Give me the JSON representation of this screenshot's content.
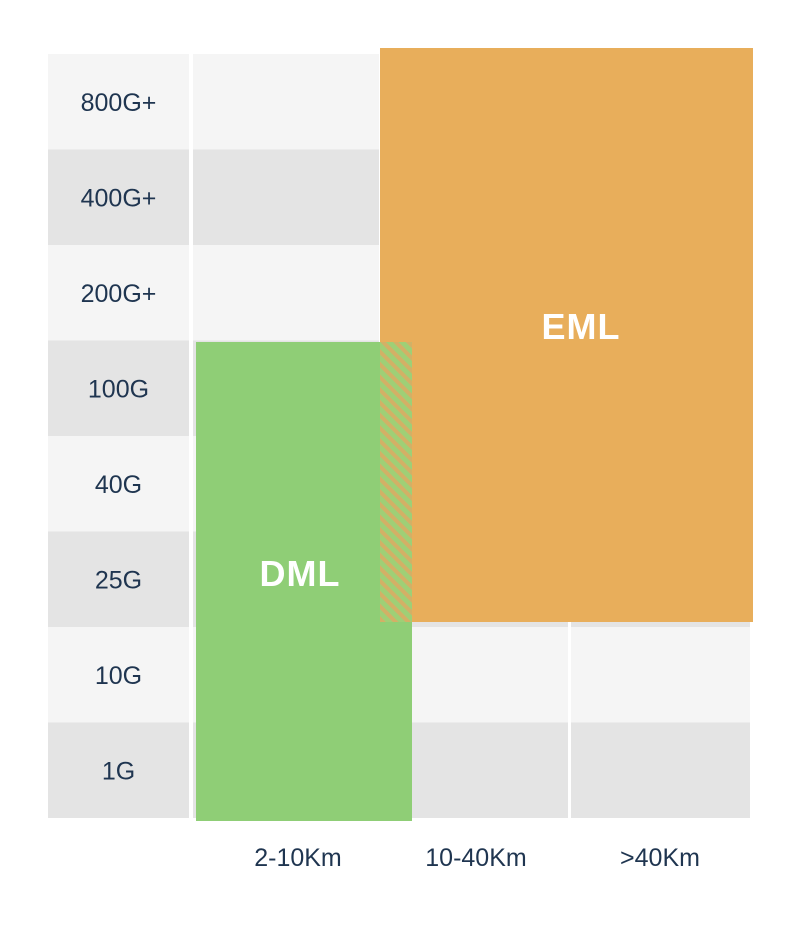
{
  "rows": [
    "800G+",
    "400G+",
    "200G+",
    "100G",
    "40G",
    "25G",
    "10G",
    "1G"
  ],
  "columns": [
    "2-10Km",
    "10-40Km",
    ">40Km"
  ],
  "regions": {
    "dml": {
      "label": "DML",
      "color": "#8fce76"
    },
    "eml": {
      "label": "EML",
      "color": "#e8ae5b"
    }
  },
  "overlap_color": "#c6b866",
  "row_colors": {
    "light": "#f5f5f5",
    "dark": "#e4e4e4"
  }
}
